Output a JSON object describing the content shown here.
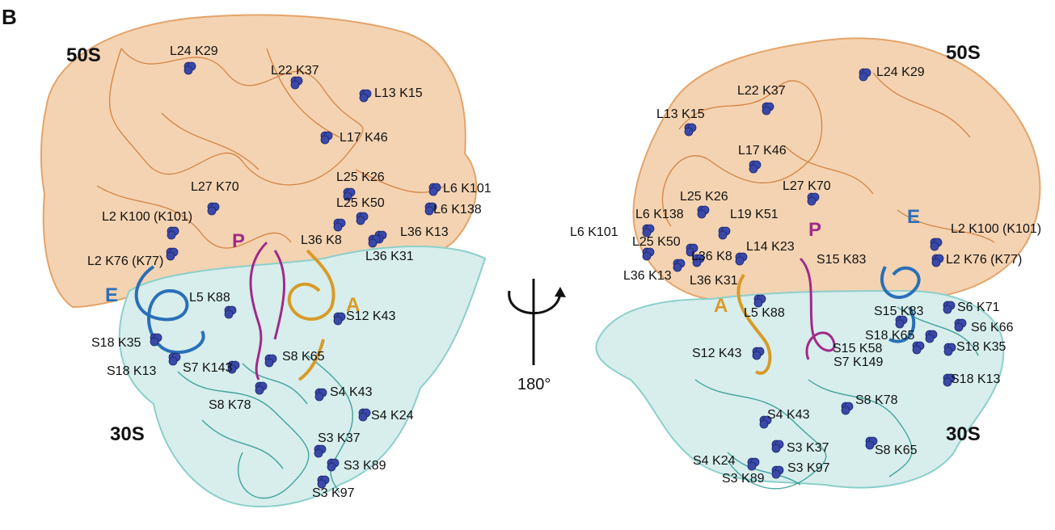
{
  "panel_label": "B",
  "subunits": {
    "left": {
      "large": "50S",
      "small": "30S"
    },
    "right": {
      "large": "50S",
      "small": "30S"
    }
  },
  "rotation": {
    "text": "180°"
  },
  "sites": {
    "left": {
      "P": "P",
      "A": "A",
      "E": "E"
    },
    "right": {
      "P": "P",
      "A": "A",
      "E": "E"
    }
  },
  "colors": {
    "rRNA_50S": "#e3a46a",
    "protein_50S": "#c8691e",
    "rRNA_30S": "#8ccfcb",
    "protein_30S": "#1c9088",
    "lysine_sphere": "#3a49a8",
    "P_site": "#a02a8a",
    "A_site": "#d89b28",
    "E_site": "#2a6fb8"
  },
  "left_labels": [
    "L24 K29",
    "L22 K37",
    "L13 K15",
    "L17 K46",
    "L25 K26",
    "L6 K101",
    "L27 K70",
    "L25 K50",
    "L6 K138",
    "L2 K100 (K101)",
    "L36 K8",
    "L36 K13",
    "L36 K31",
    "L2 K76 (K77)",
    "L5 K88",
    "S12 K43",
    "S18 K35",
    "S18 K13",
    "S7 K143",
    "S8 K65",
    "S8 K78",
    "S4 K43",
    "S4 K24",
    "S3 K37",
    "S3 K89",
    "S3 K97"
  ],
  "right_labels": [
    "L24 K29",
    "L22 K37",
    "L13 K15",
    "L17 K46",
    "L27 K70",
    "L25 K26",
    "L6 K138",
    "L19 K51",
    "L2 K100 (K101)",
    "L6 K101",
    "L25 K50",
    "L14 K23",
    "S15 K83",
    "L2 K76 (K77)",
    "L36 K8",
    "L36 K13",
    "L36 K31",
    "L5 K88",
    "S15 K83",
    "S6 K71",
    "S18 K65",
    "S6 K66",
    "S15 K58",
    "S18 K35",
    "S7 K149",
    "S12 K43",
    "S18 K13",
    "S8 K78",
    "S4 K43",
    "S3 K37",
    "S8 K65",
    "S4 K24",
    "S3 K97",
    "S3 K89"
  ]
}
